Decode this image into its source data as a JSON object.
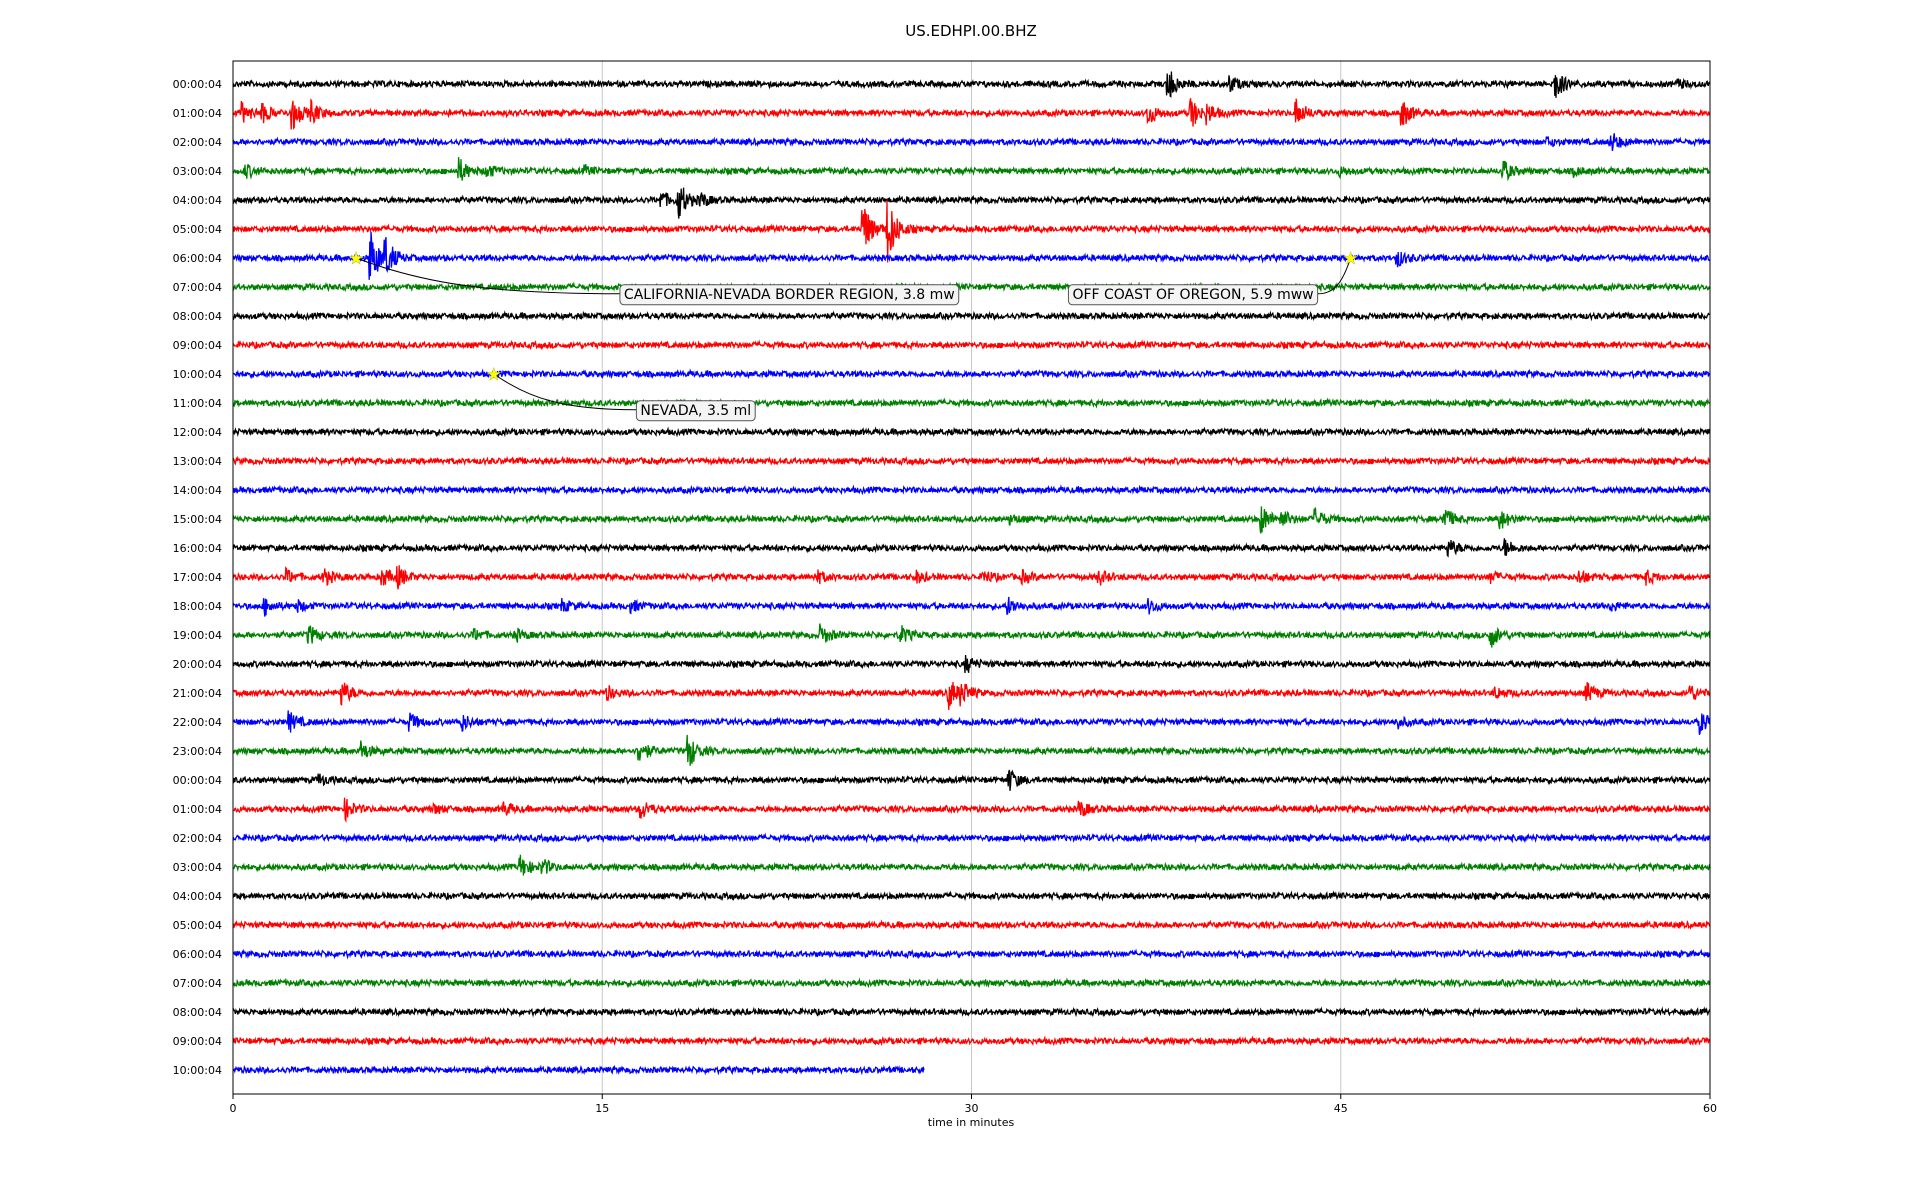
{
  "chart_data": {
    "type": "line",
    "title": "US.EDHPI.00.BHZ",
    "xlabel": "time in minutes",
    "ylabel": "",
    "xlim": [
      0,
      60
    ],
    "x_ticks": [
      0,
      15,
      30,
      45,
      60
    ],
    "x_tick_labels": [
      "0",
      "15",
      "30",
      "45",
      "60"
    ],
    "grid": "vertical",
    "trace_colors": [
      "#000000",
      "#ff0000",
      "#0000ff",
      "#008000"
    ],
    "rows": [
      {
        "label": "00:00:04",
        "duration": 60,
        "events": [
          [
            38.0,
            1.2
          ],
          [
            40.5,
            0.6
          ],
          [
            53.7,
            1.2
          ],
          [
            58.7,
            0.3
          ]
        ]
      },
      {
        "label": "01:00:04",
        "duration": 60,
        "events": [
          [
            0.4,
            0.7
          ],
          [
            1.2,
            0.6
          ],
          [
            2.4,
            1.3
          ],
          [
            3.2,
            0.7
          ],
          [
            37.2,
            0.8
          ],
          [
            38.9,
            1.2
          ],
          [
            39.6,
            0.6
          ],
          [
            43.2,
            1.0
          ],
          [
            47.5,
            1.0
          ]
        ]
      },
      {
        "label": "02:00:04",
        "duration": 60,
        "events": [
          [
            53.4,
            0.3
          ],
          [
            56.0,
            0.7
          ]
        ]
      },
      {
        "label": "03:00:04",
        "duration": 60,
        "events": [
          [
            0.5,
            0.5
          ],
          [
            9.2,
            0.9
          ],
          [
            10.3,
            0.5
          ],
          [
            14.3,
            0.3
          ],
          [
            45.0,
            0.3
          ],
          [
            51.6,
            0.8
          ],
          [
            54.5,
            0.3
          ]
        ]
      },
      {
        "label": "04:00:04",
        "duration": 60,
        "events": [
          [
            17.4,
            0.6
          ],
          [
            18.1,
            1.4
          ],
          [
            19.0,
            0.5
          ]
        ]
      },
      {
        "label": "05:00:04",
        "duration": 60,
        "events": [
          [
            25.6,
            2.0
          ],
          [
            26.6,
            2.6
          ]
        ]
      },
      {
        "label": "06:00:04",
        "duration": 60,
        "events": [
          [
            5.6,
            2.1
          ],
          [
            6.2,
            1.3
          ],
          [
            47.3,
            0.6
          ]
        ]
      },
      {
        "label": "07:00:04",
        "duration": 60,
        "events": []
      },
      {
        "label": "08:00:04",
        "duration": 60,
        "events": []
      },
      {
        "label": "09:00:04",
        "duration": 60,
        "events": []
      },
      {
        "label": "10:00:04",
        "duration": 60,
        "events": []
      },
      {
        "label": "11:00:04",
        "duration": 60,
        "events": []
      },
      {
        "label": "12:00:04",
        "duration": 60,
        "events": []
      },
      {
        "label": "13:00:04",
        "duration": 60,
        "events": []
      },
      {
        "label": "14:00:04",
        "duration": 60,
        "events": []
      },
      {
        "label": "15:00:04",
        "duration": 60,
        "events": [
          [
            31.6,
            0.3
          ],
          [
            41.8,
            1.0
          ],
          [
            42.6,
            0.6
          ],
          [
            44.0,
            0.7
          ],
          [
            49.2,
            0.9
          ],
          [
            51.5,
            0.7
          ]
        ]
      },
      {
        "label": "16:00:04",
        "duration": 60,
        "events": [
          [
            49.4,
            0.6
          ],
          [
            51.7,
            0.6
          ]
        ]
      },
      {
        "label": "17:00:04",
        "duration": 60,
        "events": [
          [
            2.2,
            0.5
          ],
          [
            3.7,
            0.6
          ],
          [
            6.1,
            0.6
          ],
          [
            6.7,
            0.7
          ],
          [
            23.7,
            0.5
          ],
          [
            27.8,
            0.4
          ],
          [
            30.5,
            0.5
          ],
          [
            32.1,
            0.4
          ],
          [
            35.2,
            0.5
          ],
          [
            51.1,
            0.4
          ],
          [
            54.7,
            0.5
          ],
          [
            57.4,
            0.5
          ]
        ]
      },
      {
        "label": "18:00:04",
        "duration": 60,
        "events": [
          [
            1.3,
            0.6
          ],
          [
            2.6,
            0.4
          ],
          [
            13.4,
            0.4
          ],
          [
            16.2,
            0.4
          ],
          [
            31.5,
            0.6
          ],
          [
            37.2,
            0.5
          ],
          [
            56.0,
            0.3
          ]
        ]
      },
      {
        "label": "19:00:04",
        "duration": 60,
        "events": [
          [
            3.1,
            0.7
          ],
          [
            9.8,
            0.4
          ],
          [
            11.5,
            0.4
          ],
          [
            23.9,
            0.7
          ],
          [
            27.1,
            0.7
          ],
          [
            51.1,
            0.9
          ]
        ]
      },
      {
        "label": "20:00:04",
        "duration": 60,
        "events": [
          [
            29.8,
            0.6
          ]
        ]
      },
      {
        "label": "21:00:04",
        "duration": 60,
        "events": [
          [
            4.4,
            1.0
          ],
          [
            15.2,
            0.5
          ],
          [
            29.1,
            1.1
          ],
          [
            29.6,
            0.7
          ],
          [
            51.3,
            0.4
          ],
          [
            55.0,
            0.7
          ],
          [
            59.2,
            0.6
          ]
        ]
      },
      {
        "label": "22:00:04",
        "duration": 60,
        "events": [
          [
            2.3,
            0.7
          ],
          [
            7.2,
            0.6
          ],
          [
            9.3,
            0.6
          ],
          [
            47.3,
            0.4
          ],
          [
            59.6,
            0.8
          ]
        ]
      },
      {
        "label": "23:00:04",
        "duration": 60,
        "events": [
          [
            5.2,
            0.7
          ],
          [
            16.5,
            0.9
          ],
          [
            18.5,
            1.3
          ]
        ]
      },
      {
        "label": "00:00:04",
        "duration": 60,
        "events": [
          [
            3.5,
            0.4
          ],
          [
            31.5,
            0.9
          ]
        ]
      },
      {
        "label": "01:00:04",
        "duration": 60,
        "events": [
          [
            4.6,
            0.7
          ],
          [
            8.2,
            0.3
          ],
          [
            11.0,
            0.5
          ],
          [
            16.6,
            0.7
          ],
          [
            34.4,
            0.6
          ]
        ]
      },
      {
        "label": "02:00:04",
        "duration": 60,
        "events": []
      },
      {
        "label": "03:00:04",
        "duration": 60,
        "events": [
          [
            11.7,
            0.8
          ],
          [
            12.6,
            0.5
          ]
        ]
      },
      {
        "label": "04:00:04",
        "duration": 60,
        "events": []
      },
      {
        "label": "05:00:04",
        "duration": 60,
        "events": []
      },
      {
        "label": "06:00:04",
        "duration": 60,
        "events": []
      },
      {
        "label": "07:00:04",
        "duration": 60,
        "events": []
      },
      {
        "label": "08:00:04",
        "duration": 60,
        "events": []
      },
      {
        "label": "09:00:04",
        "duration": 60,
        "events": []
      },
      {
        "label": "10:00:04",
        "duration": 60,
        "events": [],
        "end": 28.1
      }
    ],
    "annotations": [
      {
        "text": "CALIFORNIA-NEVADA BORDER REGION, 3.8 mw",
        "row": 6,
        "x": 5.0,
        "text_x": 22.6,
        "text_row": 7.2,
        "marker_color": "#ffff00"
      },
      {
        "text": "OFF COAST OF OREGON, 5.9 mww",
        "row": 6,
        "x": 45.4,
        "text_x": 39.0,
        "text_row": 7.2,
        "marker_color": "#ffff00"
      },
      {
        "text": "NEVADA, 3.5 ml",
        "row": 10,
        "x": 10.6,
        "text_x": 18.8,
        "text_row": 11.2,
        "marker_color": "#ffff00"
      }
    ]
  }
}
